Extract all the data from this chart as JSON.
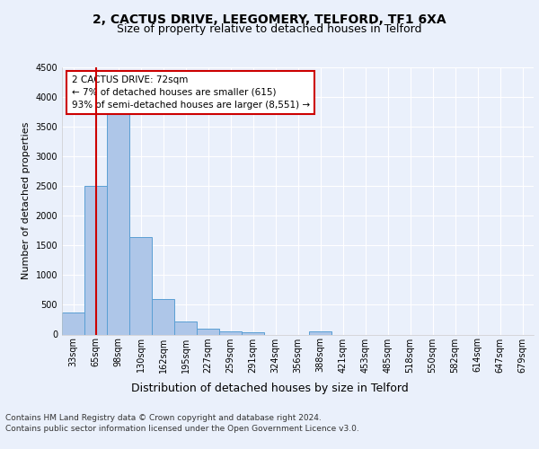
{
  "title": "2, CACTUS DRIVE, LEEGOMERY, TELFORD, TF1 6XA",
  "subtitle": "Size of property relative to detached houses in Telford",
  "xlabel": "Distribution of detached houses by size in Telford",
  "ylabel": "Number of detached properties",
  "categories": [
    "33sqm",
    "65sqm",
    "98sqm",
    "130sqm",
    "162sqm",
    "195sqm",
    "227sqm",
    "259sqm",
    "291sqm",
    "324sqm",
    "356sqm",
    "388sqm",
    "421sqm",
    "453sqm",
    "485sqm",
    "518sqm",
    "550sqm",
    "582sqm",
    "614sqm",
    "647sqm",
    "679sqm"
  ],
  "values": [
    370,
    2510,
    3730,
    1640,
    595,
    220,
    105,
    60,
    45,
    0,
    0,
    60,
    0,
    0,
    0,
    0,
    0,
    0,
    0,
    0,
    0
  ],
  "bar_color": "#aec6e8",
  "bar_edge_color": "#5a9fd4",
  "property_line_x": 1.0,
  "property_line_color": "#cc0000",
  "annotation_text": "2 CACTUS DRIVE: 72sqm\n← 7% of detached houses are smaller (615)\n93% of semi-detached houses are larger (8,551) →",
  "annotation_box_color": "#cc0000",
  "ylim": [
    0,
    4500
  ],
  "yticks": [
    0,
    500,
    1000,
    1500,
    2000,
    2500,
    3000,
    3500,
    4000,
    4500
  ],
  "footer_line1": "Contains HM Land Registry data © Crown copyright and database right 2024.",
  "footer_line2": "Contains public sector information licensed under the Open Government Licence v3.0.",
  "background_color": "#eaf0fb",
  "plot_bg_color": "#eaf0fb",
  "grid_color": "#ffffff",
  "title_fontsize": 10,
  "subtitle_fontsize": 9,
  "xlabel_fontsize": 9,
  "ylabel_fontsize": 8,
  "tick_fontsize": 7,
  "footer_fontsize": 6.5
}
